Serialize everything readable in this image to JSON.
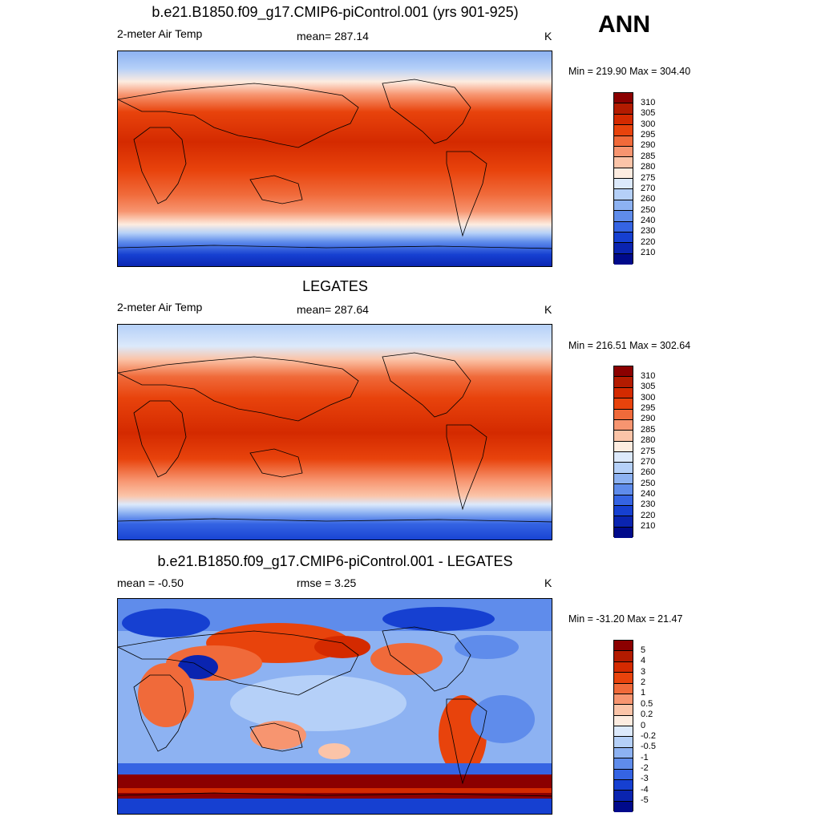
{
  "season": "ANN",
  "panels": [
    {
      "title": "b.e21.B1850.f09_g17.CMIP6-piControl.001 (yrs 901-925)",
      "left_label": "2-meter Air Temp",
      "center_label": "mean= 287.14",
      "units": "K",
      "minmax": "Min = 219.90 Max = 304.40"
    },
    {
      "title": "LEGATES",
      "left_label": "2-meter Air Temp",
      "center_label": "mean= 287.64",
      "units": "K",
      "minmax": "Min = 216.51 Max = 302.64"
    },
    {
      "title": "b.e21.B1850.f09_g17.CMIP6-piControl.001 - LEGATES",
      "left_label": "mean =  -0.50",
      "center_label": "rmse =   3.25",
      "units": "K",
      "minmax": "Min = -31.20 Max =  21.47"
    }
  ],
  "temp_colorbar": {
    "labels": [
      "310",
      "305",
      "300",
      "295",
      "290",
      "285",
      "280",
      "275",
      "270",
      "260",
      "250",
      "240",
      "230",
      "220",
      "210"
    ],
    "colors": [
      "#8b0000",
      "#b31b00",
      "#d42a00",
      "#e8430c",
      "#f06a3a",
      "#f79570",
      "#fbc4a8",
      "#fdece0",
      "#dce9fb",
      "#b5d0f8",
      "#8db2f2",
      "#5f8ceb",
      "#3564e3",
      "#1640d1",
      "#0a24b0",
      "#000a8b"
    ]
  },
  "diff_colorbar": {
    "labels": [
      "5",
      "4",
      "3",
      "2",
      "1",
      "0.5",
      "0.2",
      "0",
      "-0.2",
      "-0.5",
      "-1",
      "-2",
      "-3",
      "-4",
      "-5"
    ],
    "colors": [
      "#8b0000",
      "#b31b00",
      "#d42a00",
      "#e8430c",
      "#f06a3a",
      "#f79570",
      "#fbc4a8",
      "#fdece0",
      "#dce9fb",
      "#b5d0f8",
      "#8db2f2",
      "#5f8ceb",
      "#3564e3",
      "#1640d1",
      "#0a24b0",
      "#000a8b"
    ]
  }
}
